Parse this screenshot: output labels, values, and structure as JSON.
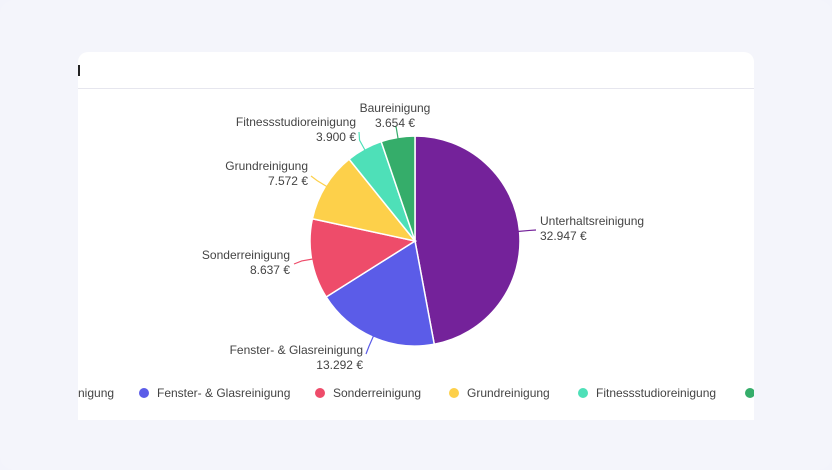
{
  "chart_data": {
    "type": "pie",
    "currency": "€",
    "slices": [
      {
        "name": "Unterhaltsreinigung",
        "value": 32947,
        "label": "32.947 €",
        "color": "#74229a"
      },
      {
        "name": "Fenster- & Glasreinigung",
        "value": 13292,
        "label": "13.292 €",
        "color": "#5b5ce8"
      },
      {
        "name": "Sonderreinigung",
        "value": 8637,
        "label": "8.637 €",
        "color": "#ee4c6a"
      },
      {
        "name": "Grundreinigung",
        "value": 7572,
        "label": "7.572 €",
        "color": "#fdd04a"
      },
      {
        "name": "Fitnessstudioreinigung",
        "value": 3900,
        "label": "3.900 €",
        "color": "#4ee0b8"
      },
      {
        "name": "Baureinigung",
        "value": 3654,
        "label": "3.654 €",
        "color": "#35ad6a"
      }
    ],
    "legend": {
      "placement": "bottom",
      "items": [
        {
          "label": "nigung",
          "color": "#74229a"
        },
        {
          "label": "Fenster- & Glasreinigung",
          "color": "#5b5ce8"
        },
        {
          "label": "Sonderreinigung",
          "color": "#ee4c6a"
        },
        {
          "label": "Grundreinigung",
          "color": "#fdd04a"
        },
        {
          "label": "Fitnessstudioreinigung",
          "color": "#4ee0b8"
        },
        {
          "label": "",
          "color": "#35ad6a"
        }
      ]
    }
  }
}
